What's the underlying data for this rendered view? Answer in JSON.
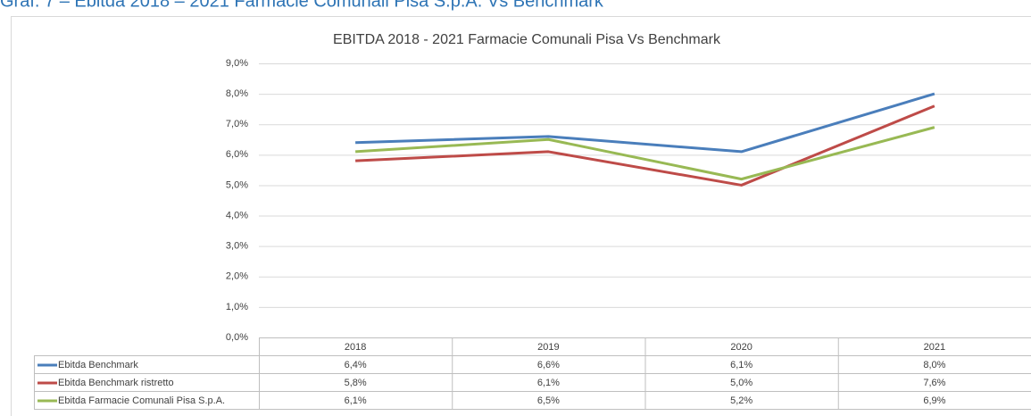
{
  "heading": "Graf. 7 – Ebitda 2018 – 2021 Farmacie Comunali Pisa S.p.A. Vs Benchmark",
  "chart_data": {
    "type": "line",
    "title": "EBITDA 2018 - 2021 Farmacie Comunali Pisa Vs Benchmark",
    "categories": [
      "2018",
      "2019",
      "2020",
      "2021"
    ],
    "series": [
      {
        "name": "Ebitda Benchmark",
        "color": "#4a7ebb",
        "values": [
          6.4,
          6.6,
          6.1,
          8.0
        ],
        "value_labels": [
          "6,4%",
          "6,6%",
          "6,1%",
          "8,0%"
        ]
      },
      {
        "name": "Ebitda Benchmark ristretto",
        "color": "#be4b48",
        "values": [
          5.8,
          6.1,
          5.0,
          7.6
        ],
        "value_labels": [
          "5,8%",
          "6,1%",
          "5,0%",
          "7,6%"
        ]
      },
      {
        "name": "Ebitda Farmacie Comunali Pisa S.p.A.",
        "color": "#98b954",
        "values": [
          6.1,
          6.5,
          5.2,
          6.9
        ],
        "value_labels": [
          "6,1%",
          "6,5%",
          "5,2%",
          "6,9%"
        ]
      }
    ],
    "ylim": [
      0,
      9
    ],
    "yticks": [
      {
        "value": 0,
        "label": "0,0%"
      },
      {
        "value": 1,
        "label": "1,0%"
      },
      {
        "value": 2,
        "label": "2,0%"
      },
      {
        "value": 3,
        "label": "3,0%"
      },
      {
        "value": 4,
        "label": "4,0%"
      },
      {
        "value": 5,
        "label": "5,0%"
      },
      {
        "value": 6,
        "label": "6,0%"
      },
      {
        "value": 7,
        "label": "7,0%"
      },
      {
        "value": 8,
        "label": "8,0%"
      },
      {
        "value": 9,
        "label": "9,0%"
      }
    ],
    "grid": true
  }
}
